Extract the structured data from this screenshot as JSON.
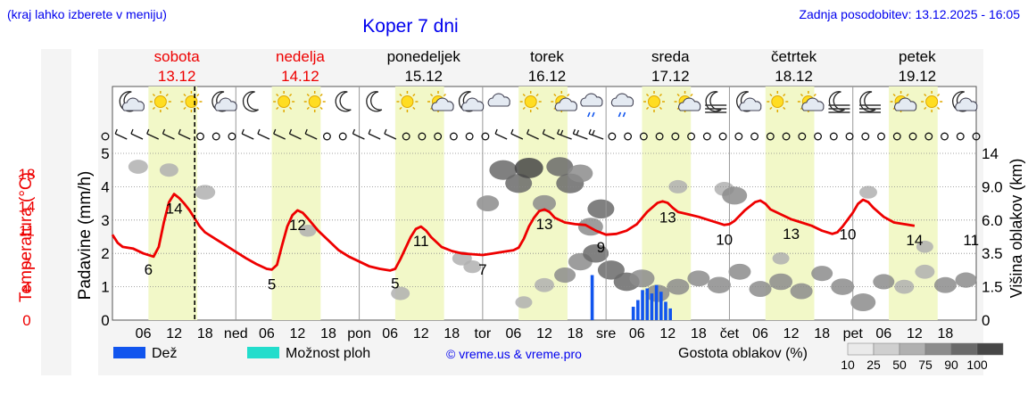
{
  "header": {
    "location_hint": "(kraj lahko izberete v meniju)",
    "title": "Koper 7 dni",
    "last_update": "Zadnja posodobitev: 13.12.2025 - 16:05"
  },
  "colors": {
    "link_blue": "#0000ee",
    "temperature_red": "#ee0000",
    "rain_blue": "#1155ee",
    "storm_teal": "#22ddcc",
    "day_band": "#f2f8c8",
    "panel_gray": "#f4f4f4"
  },
  "days": [
    {
      "name": "sobota",
      "date": "13.12",
      "weekend": true,
      "icons": [
        "moon-cloud-icon",
        "sun-icon",
        "sun-icon",
        "moon-cloud-icon"
      ]
    },
    {
      "name": "nedelja",
      "date": "14.12",
      "weekend": true,
      "icons": [
        "moon-icon",
        "sun-icon",
        "sun-icon",
        "moon-icon"
      ]
    },
    {
      "name": "ponedeljek",
      "date": "15.12",
      "weekend": false,
      "icons": [
        "moon-icon",
        "sun-icon",
        "sun-cloud-icon",
        "moon-cloud-icon"
      ]
    },
    {
      "name": "torek",
      "date": "16.12",
      "weekend": false,
      "icons": [
        "cloud-icon",
        "sun-icon",
        "sun-cloud-icon",
        "rain-cloud-icon"
      ]
    },
    {
      "name": "sreda",
      "date": "17.12",
      "weekend": false,
      "icons": [
        "rain-cloud-icon",
        "sun-icon",
        "sun-cloud-icon",
        "fog-moon-icon"
      ]
    },
    {
      "name": "četrtek",
      "date": "18.12",
      "weekend": false,
      "icons": [
        "moon-cloud-icon",
        "sun-icon",
        "sun-cloud-icon",
        "fog-moon-icon"
      ]
    },
    {
      "name": "petek",
      "date": "19.12",
      "weekend": false,
      "icons": [
        "fog-moon-icon",
        "sun-cloud-icon",
        "sun-icon",
        "moon-cloud-icon"
      ]
    }
  ],
  "chart_data": {
    "type": "line",
    "title": "Koper 7 dni",
    "x_unit": "hours from 13.12 00:00",
    "x_range": [
      0,
      168
    ],
    "x_ticks": [
      {
        "hour": 6,
        "label": "06"
      },
      {
        "hour": 12,
        "label": "12"
      },
      {
        "hour": 18,
        "label": "18"
      },
      {
        "hour": 24,
        "label": "ned"
      },
      {
        "hour": 30,
        "label": "06"
      },
      {
        "hour": 36,
        "label": "12"
      },
      {
        "hour": 42,
        "label": "18"
      },
      {
        "hour": 48,
        "label": "pon"
      },
      {
        "hour": 54,
        "label": "06"
      },
      {
        "hour": 60,
        "label": "12"
      },
      {
        "hour": 66,
        "label": "18"
      },
      {
        "hour": 72,
        "label": "tor"
      },
      {
        "hour": 78,
        "label": "06"
      },
      {
        "hour": 84,
        "label": "12"
      },
      {
        "hour": 90,
        "label": "18"
      },
      {
        "hour": 96,
        "label": "sre"
      },
      {
        "hour": 102,
        "label": "06"
      },
      {
        "hour": 108,
        "label": "12"
      },
      {
        "hour": 114,
        "label": "18"
      },
      {
        "hour": 120,
        "label": "čet"
      },
      {
        "hour": 126,
        "label": "06"
      },
      {
        "hour": 132,
        "label": "12"
      },
      {
        "hour": 138,
        "label": "18"
      },
      {
        "hour": 144,
        "label": "pet"
      },
      {
        "hour": 150,
        "label": "06"
      },
      {
        "hour": 156,
        "label": "12"
      },
      {
        "hour": 162,
        "label": "18"
      }
    ],
    "now_hour": 16,
    "daylight_hours": [
      [
        7,
        16.5
      ]
    ],
    "axes": {
      "temperature": {
        "label": "Temperatura (°C)",
        "range": [
          0,
          20.5
        ],
        "ticks": [
          0,
          4,
          7,
          11,
          14,
          18
        ]
      },
      "precipitation": {
        "label": "Padavine (mm/h)",
        "range": [
          0,
          5
        ],
        "ticks": [
          0,
          1,
          2,
          3,
          4,
          5
        ]
      },
      "cloud_height": {
        "label": "Višina oblakov (km)",
        "range": [
          0,
          14
        ],
        "ticks": [
          "0",
          "1.5",
          "3.5",
          "6.0",
          "9.0",
          "14"
        ]
      }
    },
    "series": [
      {
        "name": "Temperatura",
        "unit": "°C",
        "points": [
          [
            0,
            10.5
          ],
          [
            1,
            9.5
          ],
          [
            2,
            9
          ],
          [
            4,
            8.8
          ],
          [
            6,
            8.2
          ],
          [
            8,
            7.8
          ],
          [
            9,
            9
          ],
          [
            10,
            12
          ],
          [
            11,
            14.5
          ],
          [
            12,
            15.5
          ],
          [
            13,
            15
          ],
          [
            14,
            14.3
          ],
          [
            15,
            13.5
          ],
          [
            16,
            12.5
          ],
          [
            17,
            11.5
          ],
          [
            18,
            10.8
          ],
          [
            20,
            10
          ],
          [
            22,
            9.2
          ],
          [
            24,
            8.4
          ],
          [
            26,
            7.6
          ],
          [
            28,
            6.9
          ],
          [
            30,
            6.3
          ],
          [
            31,
            6.2
          ],
          [
            32,
            6.8
          ],
          [
            33,
            9.2
          ],
          [
            34,
            11.5
          ],
          [
            35,
            12.9
          ],
          [
            36,
            13.5
          ],
          [
            37,
            13.2
          ],
          [
            38,
            12.5
          ],
          [
            40,
            11
          ],
          [
            42,
            9.8
          ],
          [
            44,
            8.6
          ],
          [
            46,
            7.8
          ],
          [
            48,
            7.2
          ],
          [
            50,
            6.6
          ],
          [
            52,
            6.3
          ],
          [
            54,
            6.1
          ],
          [
            55,
            6.3
          ],
          [
            56,
            7.5
          ],
          [
            58,
            10.2
          ],
          [
            59,
            11.2
          ],
          [
            60,
            11.5
          ],
          [
            61,
            11
          ],
          [
            62,
            10.2
          ],
          [
            64,
            9
          ],
          [
            66,
            8.5
          ],
          [
            68,
            8.2
          ],
          [
            70,
            8.1
          ],
          [
            72,
            8
          ],
          [
            74,
            8.2
          ],
          [
            76,
            8.4
          ],
          [
            78,
            8.6
          ],
          [
            79,
            8.9
          ],
          [
            80,
            10
          ],
          [
            81,
            11.5
          ],
          [
            82,
            12.6
          ],
          [
            83,
            13.4
          ],
          [
            84,
            13.6
          ],
          [
            85,
            13.3
          ],
          [
            86,
            12.6
          ],
          [
            88,
            12
          ],
          [
            90,
            11.8
          ],
          [
            92,
            11.7
          ],
          [
            94,
            11
          ],
          [
            96,
            10.5
          ],
          [
            98,
            10.6
          ],
          [
            100,
            11
          ],
          [
            102,
            11.8
          ],
          [
            104,
            13.3
          ],
          [
            106,
            14.4
          ],
          [
            107,
            14.6
          ],
          [
            108,
            14.4
          ],
          [
            109,
            13.8
          ],
          [
            110,
            13.3
          ],
          [
            112,
            13
          ],
          [
            114,
            12.7
          ],
          [
            116,
            12.3
          ],
          [
            118,
            11.9
          ],
          [
            119,
            11.7
          ],
          [
            120,
            11.8
          ],
          [
            121,
            12.2
          ],
          [
            123,
            13.5
          ],
          [
            125,
            14.5
          ],
          [
            126,
            14.7
          ],
          [
            127,
            14.3
          ],
          [
            128,
            13.6
          ],
          [
            130,
            13
          ],
          [
            132,
            12.4
          ],
          [
            134,
            12
          ],
          [
            136,
            11.6
          ],
          [
            138,
            11
          ],
          [
            140,
            10.6
          ],
          [
            141,
            10.8
          ],
          [
            142,
            11.5
          ],
          [
            144,
            13.2
          ],
          [
            145,
            14.3
          ],
          [
            146,
            14.8
          ],
          [
            147,
            14.5
          ],
          [
            148,
            13.8
          ],
          [
            150,
            12.7
          ],
          [
            152,
            12
          ],
          [
            154,
            11.8
          ],
          [
            156,
            11.6
          ]
        ]
      },
      {
        "name": "Dež",
        "unit": "mm/h",
        "type": "bar",
        "points": [
          [
            93.3,
            1.35
          ],
          [
            101.3,
            0.4
          ],
          [
            102.2,
            0.6
          ],
          [
            103.1,
            0.9
          ],
          [
            104,
            0.95
          ],
          [
            104.9,
            0.8
          ],
          [
            105.8,
            1.05
          ],
          [
            106.7,
            0.85
          ],
          [
            107.6,
            0.55
          ],
          [
            108.5,
            0.35
          ]
        ]
      },
      {
        "name": "Možnost ploh",
        "unit": "mm/h",
        "type": "bar",
        "points": []
      }
    ],
    "temperature_labels": [
      {
        "hour": 7,
        "value": "6"
      },
      {
        "hour": 12,
        "value": "14"
      },
      {
        "hour": 31,
        "value": "5"
      },
      {
        "hour": 36,
        "value": "12"
      },
      {
        "hour": 55,
        "value": "5"
      },
      {
        "hour": 60,
        "value": "11"
      },
      {
        "hour": 72,
        "value": "7"
      },
      {
        "hour": 84,
        "value": "13"
      },
      {
        "hour": 95,
        "value": "9"
      },
      {
        "hour": 108,
        "value": "13"
      },
      {
        "hour": 119,
        "value": "10"
      },
      {
        "hour": 132,
        "value": "13"
      },
      {
        "hour": 143,
        "value": "10"
      },
      {
        "hour": 156,
        "value": "14"
      },
      {
        "hour": 167,
        "value": "11"
      }
    ],
    "cloud_blobs": [
      {
        "hour": 5,
        "height_km": 12,
        "density": 40
      },
      {
        "hour": 11,
        "height_km": 11.5,
        "density": 35
      },
      {
        "hour": 18,
        "height_km": 8.5,
        "density": 45
      },
      {
        "hour": 38,
        "height_km": 5.2,
        "density": 25
      },
      {
        "hour": 56,
        "height_km": 1.2,
        "density": 35
      },
      {
        "hour": 68,
        "height_km": 3.2,
        "density": 40
      },
      {
        "hour": 70,
        "height_km": 2.7,
        "density": 30
      },
      {
        "hour": 73,
        "height_km": 7.5,
        "density": 55
      },
      {
        "hour": 76,
        "height_km": 11.5,
        "density": 85
      },
      {
        "hour": 79,
        "height_km": 9.5,
        "density": 80
      },
      {
        "hour": 81,
        "height_km": 11.8,
        "density": 90
      },
      {
        "hour": 84,
        "height_km": 7.5,
        "density": 60
      },
      {
        "hour": 87,
        "height_km": 12,
        "density": 80
      },
      {
        "hour": 89,
        "height_km": 9.5,
        "density": 85
      },
      {
        "hour": 91,
        "height_km": 11,
        "density": 70
      },
      {
        "hour": 93,
        "height_km": 5.5,
        "density": 70
      },
      {
        "hour": 95,
        "height_km": 7,
        "density": 80
      },
      {
        "hour": 80,
        "height_km": 0.8,
        "density": 25
      },
      {
        "hour": 84,
        "height_km": 1.6,
        "density": 40
      },
      {
        "hour": 88,
        "height_km": 2.2,
        "density": 50
      },
      {
        "hour": 91,
        "height_km": 3,
        "density": 65
      },
      {
        "hour": 94,
        "height_km": 3.5,
        "density": 75
      },
      {
        "hour": 97,
        "height_km": 2.5,
        "density": 80
      },
      {
        "hour": 100,
        "height_km": 1.8,
        "density": 75
      },
      {
        "hour": 103,
        "height_km": 2,
        "density": 70
      },
      {
        "hour": 106,
        "height_km": 1.2,
        "density": 65
      },
      {
        "hour": 110,
        "height_km": 1.5,
        "density": 55
      },
      {
        "hour": 114,
        "height_km": 2,
        "density": 55
      },
      {
        "hour": 118,
        "height_km": 1.6,
        "density": 60
      },
      {
        "hour": 122,
        "height_km": 2.4,
        "density": 55
      },
      {
        "hour": 126,
        "height_km": 1.4,
        "density": 55
      },
      {
        "hour": 130,
        "height_km": 1.8,
        "density": 60
      },
      {
        "hour": 134,
        "height_km": 1.3,
        "density": 55
      },
      {
        "hour": 138,
        "height_km": 2.3,
        "density": 50
      },
      {
        "hour": 142,
        "height_km": 1.5,
        "density": 60
      },
      {
        "hour": 146,
        "height_km": 0.8,
        "density": 70
      },
      {
        "hour": 150,
        "height_km": 1.8,
        "density": 50
      },
      {
        "hour": 154,
        "height_km": 1.5,
        "density": 40
      },
      {
        "hour": 158,
        "height_km": 2.4,
        "density": 40
      },
      {
        "hour": 162,
        "height_km": 1.6,
        "density": 55
      },
      {
        "hour": 166,
        "height_km": 1.9,
        "density": 50
      },
      {
        "hour": 110,
        "height_km": 9,
        "density": 35
      },
      {
        "hour": 119,
        "height_km": 8.8,
        "density": 40
      },
      {
        "hour": 121,
        "height_km": 8.2,
        "density": 70
      },
      {
        "hour": 130,
        "height_km": 3.2,
        "density": 25
      },
      {
        "hour": 147,
        "height_km": 8.5,
        "density": 30
      },
      {
        "hour": 158,
        "height_km": 4,
        "density": 25
      }
    ],
    "wind_symbols": [
      "calm",
      "light",
      "light",
      "light",
      "light",
      "light",
      "calm",
      "calm",
      "calm",
      "light",
      "light",
      "light",
      "light",
      "light",
      "calm",
      "calm",
      "light",
      "light",
      "light",
      "calm",
      "calm",
      "calm",
      "calm",
      "calm",
      "calm",
      "light",
      "light",
      "light",
      "light",
      "strong",
      "strong",
      "strong",
      "calm",
      "calm",
      "calm",
      "calm",
      "calm",
      "calm",
      "calm",
      "calm",
      "calm",
      "calm",
      "calm",
      "calm",
      "calm",
      "calm",
      "calm",
      "calm",
      "calm",
      "calm",
      "calm",
      "calm",
      "calm",
      "calm",
      "calm",
      "calm"
    ],
    "legend": {
      "rain": "Dež",
      "showers": "Možnost ploh",
      "copyright": "© vreme.us & vreme.pro",
      "cloud_density_label": "Gostota oblakov (%)",
      "cloud_density_ticks": [
        "10",
        "25",
        "50",
        "75",
        "90",
        "100"
      ],
      "cloud_density_colors": [
        "#eaeaea",
        "#cfcfcf",
        "#b0b0b0",
        "#8c8c8c",
        "#6a6a6a",
        "#474747"
      ]
    }
  }
}
